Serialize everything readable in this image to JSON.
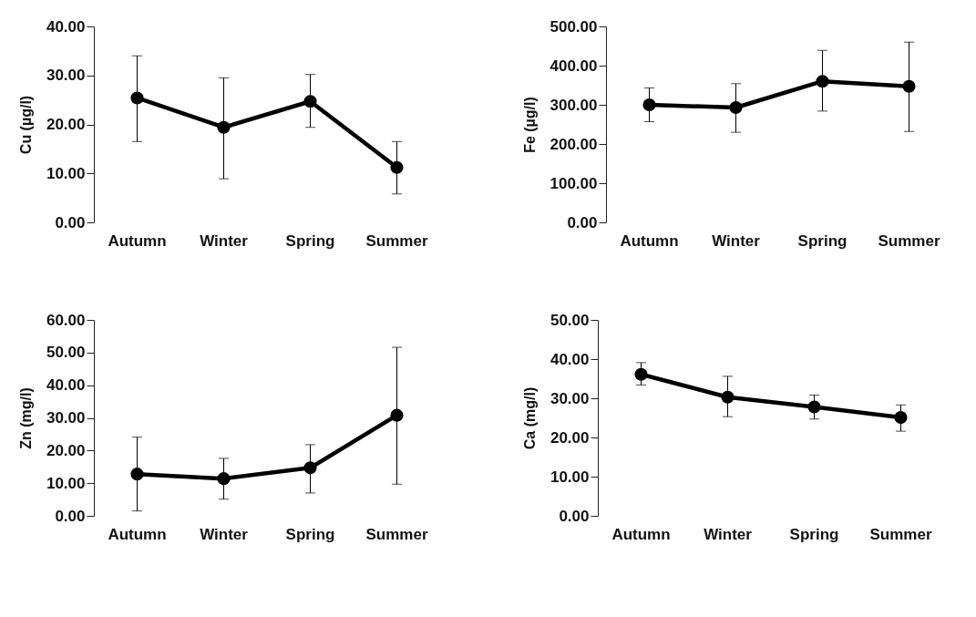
{
  "chart_data": [
    {
      "type": "line",
      "ylabel": "Cu (µg/l)",
      "categories": [
        "Autumn",
        "Winter",
        "Spring",
        "Summer"
      ],
      "series": [
        {
          "color": "#000000",
          "values": [
            25.4,
            19.4,
            24.7,
            11.2
          ],
          "errors": [
            [
              16.5,
              34.0
            ],
            [
              8.9,
              29.5
            ],
            [
              19.4,
              30.2
            ],
            [
              5.8,
              16.5
            ]
          ]
        }
      ],
      "ylim": [
        0,
        40
      ],
      "yticks": [
        {
          "value": 0,
          "label": "0.00"
        },
        {
          "value": 10,
          "label": "10.00"
        },
        {
          "value": 20,
          "label": "20.00"
        },
        {
          "value": 30,
          "label": "30.00"
        },
        {
          "value": 40,
          "label": "40.00"
        }
      ],
      "marker": "circle",
      "line_style": "solid"
    },
    {
      "type": "line",
      "ylabel": "Fe (µg/l)",
      "categories": [
        "Autumn",
        "Winter",
        "Spring",
        "Summer"
      ],
      "series": [
        {
          "color": "#000000",
          "values": [
            300,
            293,
            360,
            347
          ],
          "errors": [
            [
              257,
              343
            ],
            [
              230,
              354
            ],
            [
              284,
              439
            ],
            [
              232,
              460
            ]
          ]
        }
      ],
      "ylim": [
        0,
        500
      ],
      "yticks": [
        {
          "value": 0,
          "label": "0.00"
        },
        {
          "value": 100,
          "label": "100.00"
        },
        {
          "value": 200,
          "label": "200.00"
        },
        {
          "value": 300,
          "label": "300.00"
        },
        {
          "value": 400,
          "label": "400.00"
        },
        {
          "value": 500,
          "label": "500.00"
        }
      ],
      "marker": "circle",
      "line_style": "solid"
    },
    {
      "type": "line",
      "ylabel": "Zn (mg/l)",
      "categories": [
        "Autumn",
        "Winter",
        "Spring",
        "Summer"
      ],
      "series": [
        {
          "color": "#000000",
          "values": [
            12.8,
            11.4,
            14.7,
            30.8
          ],
          "errors": [
            [
              1.5,
              24.1
            ],
            [
              5.1,
              17.6
            ],
            [
              7.0,
              21.8
            ],
            [
              9.7,
              51.6
            ]
          ]
        }
      ],
      "ylim": [
        0,
        60
      ],
      "yticks": [
        {
          "value": 0,
          "label": "0.00"
        },
        {
          "value": 10,
          "label": "10.00"
        },
        {
          "value": 20,
          "label": "20.00"
        },
        {
          "value": 30,
          "label": "30.00"
        },
        {
          "value": 40,
          "label": "40.00"
        },
        {
          "value": 50,
          "label": "50.00"
        },
        {
          "value": 60,
          "label": "60.00"
        }
      ],
      "marker": "circle",
      "line_style": "solid"
    },
    {
      "type": "line",
      "ylabel": "Ca (mg/l)",
      "categories": [
        "Autumn",
        "Winter",
        "Spring",
        "Summer"
      ],
      "series": [
        {
          "color": "#000000",
          "values": [
            36.1,
            30.3,
            27.8,
            25.1
          ],
          "errors": [
            [
              33.4,
              39.1
            ],
            [
              25.3,
              35.6
            ],
            [
              24.7,
              30.8
            ],
            [
              21.6,
              28.3
            ]
          ]
        }
      ],
      "ylim": [
        0,
        50
      ],
      "yticks": [
        {
          "value": 0,
          "label": "0.00"
        },
        {
          "value": 10,
          "label": "10.00"
        },
        {
          "value": 20,
          "label": "20.00"
        },
        {
          "value": 30,
          "label": "30.00"
        },
        {
          "value": 40,
          "label": "40.00"
        },
        {
          "value": 50,
          "label": "50.00"
        }
      ],
      "marker": "circle",
      "line_style": "solid"
    }
  ]
}
